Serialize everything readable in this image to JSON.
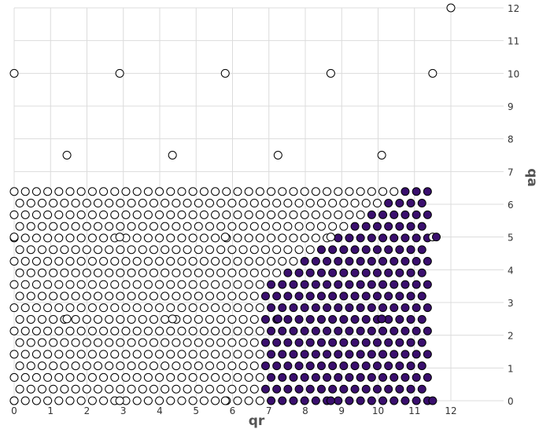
{
  "chart_data": {
    "type": "scatter",
    "title": "",
    "xlabel": "qr",
    "ylabel": "qa",
    "xlim": [
      0,
      12
    ],
    "ylim": [
      0,
      12
    ],
    "xticks": [
      "0",
      "1",
      "2",
      "3",
      "4",
      "5",
      "6",
      "7",
      "8",
      "9",
      "10",
      "11",
      "12"
    ],
    "yticks": [
      "0",
      "1",
      "2",
      "3",
      "4",
      "5",
      "6",
      "7",
      "8",
      "9",
      "10",
      "11",
      "12"
    ],
    "y_axis_side": "right",
    "grid": true,
    "legend": false,
    "colors": {
      "open_marker_fill": "#ffffff",
      "filled_marker_fill": "#3a0f6e",
      "marker_edge": "#000000",
      "grid": "#dcdcdc"
    },
    "series": [
      {
        "marker": "open",
        "points": [
          [
            0,
            10
          ],
          [
            2.9,
            10
          ],
          [
            5.8,
            10
          ],
          [
            8.7,
            10
          ],
          [
            11.5,
            10
          ],
          [
            12,
            12
          ],
          [
            1.45,
            7.5
          ],
          [
            4.35,
            7.5
          ],
          [
            7.25,
            7.5
          ],
          [
            10.1,
            7.5
          ],
          [
            0,
            5
          ],
          [
            2.9,
            5
          ],
          [
            5.8,
            5
          ],
          [
            8.7,
            5
          ],
          [
            11.5,
            5
          ],
          [
            1.45,
            2.5
          ],
          [
            4.35,
            2.5
          ],
          [
            0,
            0
          ],
          [
            2.9,
            0
          ],
          [
            5.8,
            0
          ]
        ]
      },
      {
        "marker": "filled",
        "points": [
          [
            7.25,
            2.5
          ],
          [
            10.1,
            2.5
          ],
          [
            8.7,
            0
          ],
          [
            11.5,
            0
          ],
          [
            11.6,
            5
          ]
        ]
      }
    ],
    "lattice": {
      "description": "hexagonal grid of markers filling 0<=qr<=11.5 and 0<=qa<=6.4; open markers where qr < ~7 or upper-left region, filled markers in the lower-right region bounded by qa <= 0.75*(qr-7)+3.6",
      "x_min": 0,
      "x_max": 11.5,
      "x_step": 0.307,
      "y_min": 0,
      "y_max": 6.4,
      "y_step": 0.355,
      "filled_region": {
        "x_min": 6.85,
        "boundary_slope": 0.75,
        "boundary_intercept_at_x7": 3.65
      }
    }
  }
}
